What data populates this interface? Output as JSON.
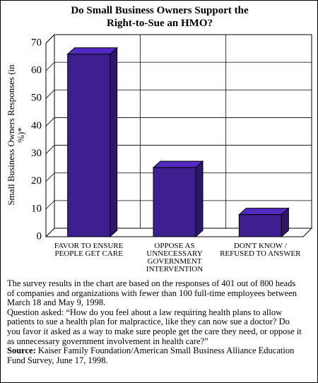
{
  "chart_data": {
    "type": "bar",
    "title": "Do Small Business Owners Support the Right-to-Sue an HMO?",
    "y_label": "Small Business Owners Responses (in %)*",
    "categories": [
      "FAVOR TO ENSURE PEOPLE GET CARE",
      "OPPOSE AS UNNECESSARY GOVERNMENT INTERVENTION",
      "DON'T KNOW / REFUSED TO ANSWER"
    ],
    "values": [
      66,
      25,
      8
    ],
    "color": "#3d1f8f",
    "ylim": [
      0,
      70
    ],
    "yticks": [
      0,
      10,
      20,
      30,
      40,
      50,
      60,
      70
    ],
    "grid": true,
    "note": "The survey results in the chart are based on the responses of 401 out of 800 heads of companies and organizations with fewer than 100 full-time employees between March 18 and May 9, 1998.",
    "question": "Question asked: “How do you feel about a law requiring health plans to allow patients to sue a health plan for malpractice, like they can now sue a doctor? Do you favor it asked as a way to make sure people get the care they need, or oppose it as unnecessary government involvement in health care?”",
    "source_label": "Source:",
    "source": "Kaiser Family Foundation/American Small Business Alliance Education Fund Survey, June 17, 1998."
  }
}
